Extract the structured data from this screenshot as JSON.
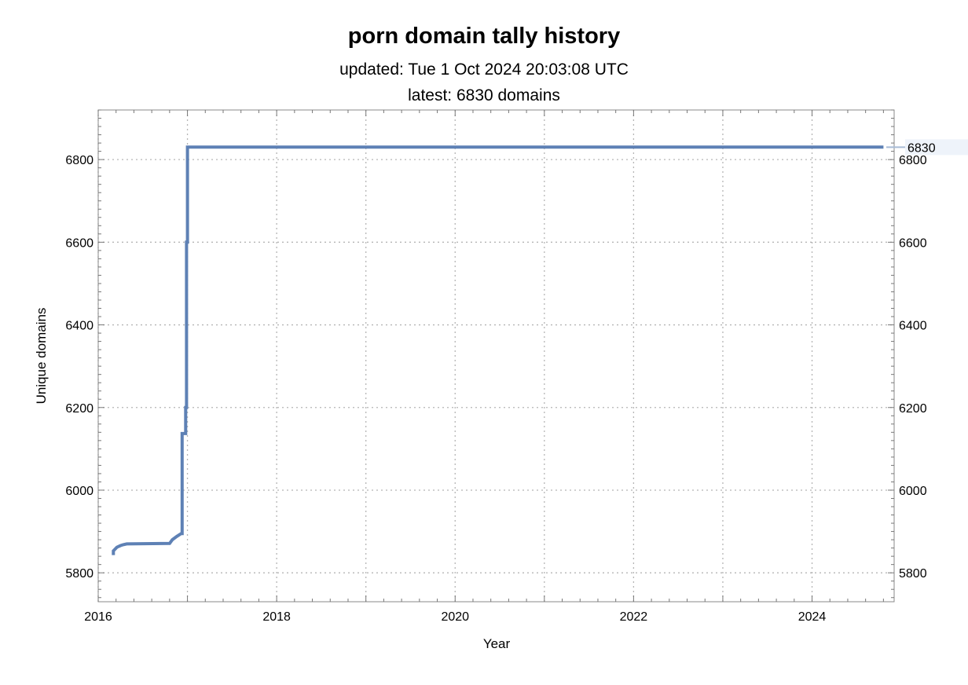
{
  "chart_data": {
    "type": "line",
    "title": "porn domain tally history",
    "subtitle_1": "updated: Tue 1 Oct 2024 20:03:08 UTC",
    "subtitle_2": "latest: 6830 domains",
    "xlabel": "Year",
    "ylabel": "Unique domains",
    "xlim": [
      2016.0,
      2024.92
    ],
    "ylim": [
      5730,
      6920
    ],
    "x_ticks": [
      2016,
      2018,
      2020,
      2022,
      2024
    ],
    "y_ticks": [
      5800,
      6000,
      6200,
      6400,
      6600,
      6800
    ],
    "grid": true,
    "series": [
      {
        "color": "#5e81b5",
        "x": [
          2016.17,
          2016.17,
          2016.21,
          2016.25,
          2016.28,
          2016.32,
          2016.8,
          2016.83,
          2016.88,
          2016.93,
          2016.94,
          2016.94,
          2016.98,
          2016.98,
          2016.99,
          2016.99,
          2017.0,
          2017.0,
          2024.8
        ],
        "y": [
          5843,
          5853,
          5862,
          5866,
          5868,
          5870,
          5871,
          5880,
          5888,
          5895,
          5895,
          6137,
          6137,
          6200,
          6200,
          6600,
          6600,
          6830,
          6830
        ]
      }
    ],
    "end_label": "6830"
  }
}
